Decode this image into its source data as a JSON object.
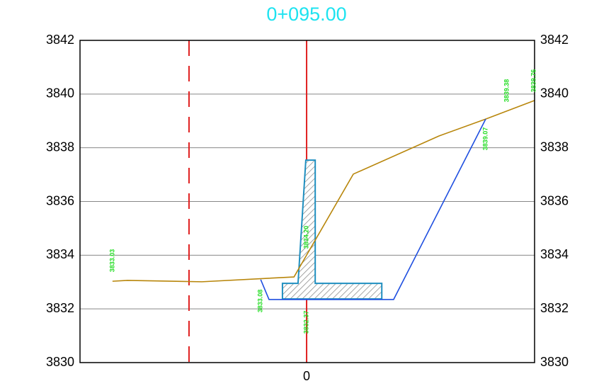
{
  "chart_data": {
    "type": "line",
    "title": "0+095.00",
    "title_color": "#1ee3f0",
    "xlim": [
      -8.44,
      8.49
    ],
    "xticks": [
      0
    ],
    "ylim": [
      3830,
      3842
    ],
    "yticks": [
      3830,
      3832,
      3834,
      3836,
      3838,
      3840,
      3842
    ],
    "grid": true,
    "series": [
      {
        "color": "#b8860b",
        "x": [
          -7.23,
          -6.67,
          -3.9,
          -0.47,
          1.74,
          4.93,
          6.67,
          8.49
        ],
        "values": [
          3833.03,
          3833.06,
          3833.01,
          3833.19,
          3837.02,
          3838.44,
          3839.07,
          3839.76
        ]
      },
      {
        "color": "#1f4fe0",
        "x": [
          -1.71,
          -1.4,
          3.24,
          6.67
        ],
        "values": [
          3833.09,
          3832.35,
          3832.35,
          3839.07
        ]
      }
    ],
    "wall": {
      "color": "#1f8fc0",
      "x": [
        -0.03,
        0.32,
        0.32,
        2.8,
        2.8,
        -0.9,
        -0.9,
        -0.32
      ],
      "values": [
        3837.54,
        3837.54,
        3832.95,
        3832.95,
        3832.37,
        3832.37,
        3832.95,
        3832.95
      ]
    },
    "reference_lines": [
      {
        "x": -4.38,
        "color": "#e02020",
        "dashed": true
      },
      {
        "x": 0,
        "color": "#e02020",
        "dashed": false
      }
    ],
    "annotations": [
      "3833.03",
      "3833.08",
      "3834.20",
      "3832.37",
      "3839.07",
      "3839.38",
      "3839.76"
    ]
  }
}
